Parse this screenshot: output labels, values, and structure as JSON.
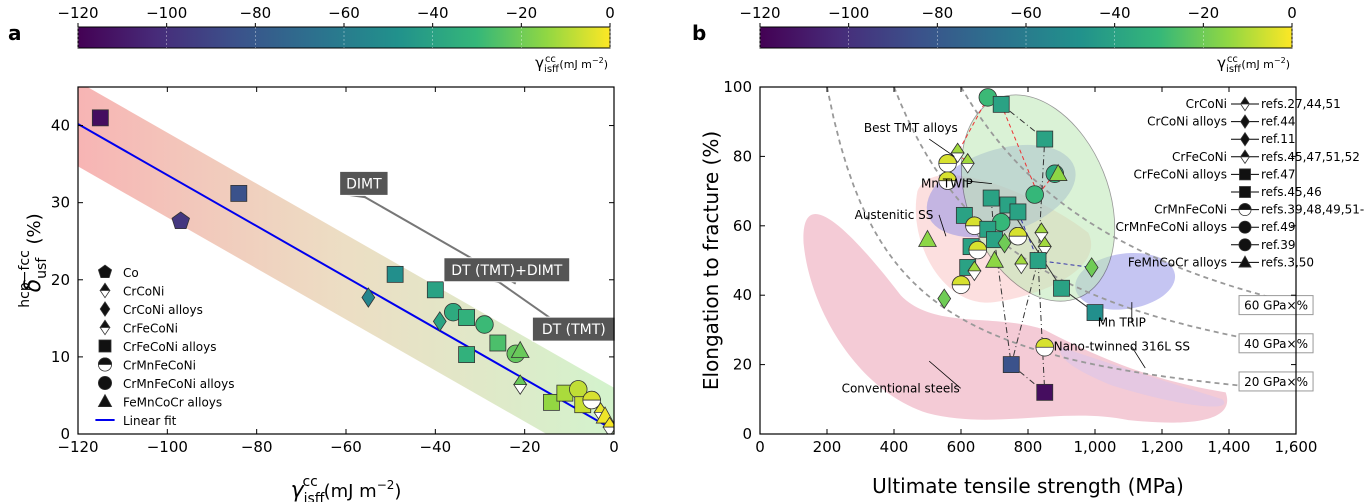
{
  "figure": {
    "panel_a_label": "a",
    "panel_b_label": "b"
  },
  "colorbar": {
    "ticks": [
      "−120",
      "−100",
      "−80",
      "−60",
      "−40",
      "−20",
      "0"
    ],
    "label_symbol": "γ",
    "label_super": "fcc",
    "label_sub": "isf",
    "label_units": " (mJ m",
    "label_exp": "−2",
    "label_close": ")"
  },
  "chart_data": [
    {
      "type": "scatter",
      "panel": "a",
      "xlabel": {
        "symbol": "γ",
        "super": "fcc",
        "sub": "isf",
        "units": " (mJ m",
        "exp": "−2",
        "close": ")"
      },
      "ylabel": {
        "symbol": "δ",
        "super": "hcp−fcc",
        "sub": "usf",
        "units": " (%)"
      },
      "xlim": [
        -120,
        0
      ],
      "ylim": [
        0,
        45
      ],
      "x_ticks": [
        -120,
        -100,
        -80,
        -60,
        -40,
        -20,
        0
      ],
      "x_tick_labels": [
        "−120",
        "−100",
        "−80",
        "−60",
        "−40",
        "−20",
        "0"
      ],
      "y_ticks": [
        0,
        10,
        20,
        30,
        40
      ],
      "y_tick_labels": [
        "0",
        "10",
        "20",
        "30",
        "40"
      ],
      "linear_fit": {
        "name": "Linear fit",
        "x": [
          -120,
          0
        ],
        "y": [
          40.2,
          0.5
        ]
      },
      "legend": [
        {
          "marker": "pentagon",
          "label": "Co"
        },
        {
          "marker": "diamond-half",
          "label": "CrCoNi"
        },
        {
          "marker": "diamond",
          "label": "CrCoNi alloys"
        },
        {
          "marker": "diamond-half",
          "label": "CrFeCoNi"
        },
        {
          "marker": "square",
          "label": "CrFeCoNi alloys"
        },
        {
          "marker": "circle-half",
          "label": "CrMnFeCoNi"
        },
        {
          "marker": "circle",
          "label": "CrMnFeCoNi alloys"
        },
        {
          "marker": "triangle",
          "label": "FeMnCoCr alloys"
        },
        {
          "marker": "line",
          "label": "Linear fit"
        }
      ],
      "annotations": [
        "DIMT",
        "DT (TMT)+DIMT",
        "DT (TMT)"
      ],
      "points": [
        {
          "x": -115,
          "y": 41.0,
          "marker": "square"
        },
        {
          "x": -97,
          "y": 27.6,
          "marker": "pentagon"
        },
        {
          "x": -84,
          "y": 31.2,
          "marker": "square"
        },
        {
          "x": -55,
          "y": 17.7,
          "marker": "diamond"
        },
        {
          "x": -49,
          "y": 20.7,
          "marker": "square"
        },
        {
          "x": -40,
          "y": 18.7,
          "marker": "square"
        },
        {
          "x": -39,
          "y": 14.6,
          "marker": "diamond"
        },
        {
          "x": -36,
          "y": 15.8,
          "marker": "circle"
        },
        {
          "x": -33,
          "y": 15.1,
          "marker": "square"
        },
        {
          "x": -33,
          "y": 10.3,
          "marker": "square"
        },
        {
          "x": -29,
          "y": 14.2,
          "marker": "circle"
        },
        {
          "x": -26,
          "y": 11.8,
          "marker": "square"
        },
        {
          "x": -22,
          "y": 10.4,
          "marker": "circle"
        },
        {
          "x": -21,
          "y": 10.8,
          "marker": "triangle"
        },
        {
          "x": -21,
          "y": 6.4,
          "marker": "diamond-half"
        },
        {
          "x": -14,
          "y": 4.1,
          "marker": "square"
        },
        {
          "x": -11,
          "y": 5.3,
          "marker": "square"
        },
        {
          "x": -8,
          "y": 5.8,
          "marker": "circle"
        },
        {
          "x": -7,
          "y": 3.8,
          "marker": "square"
        },
        {
          "x": -5,
          "y": 4.4,
          "marker": "circle-half"
        },
        {
          "x": -3,
          "y": 2.8,
          "marker": "diamond-half"
        },
        {
          "x": -2,
          "y": 2.3,
          "marker": "triangle"
        },
        {
          "x": -1,
          "y": 0.9,
          "marker": "diamond-half"
        }
      ]
    },
    {
      "type": "scatter",
      "panel": "b",
      "xlabel": "Ultimate tensile strength (MPa)",
      "ylabel": "Elongation to fracture (%)",
      "xlim": [
        0,
        1600
      ],
      "ylim": [
        0,
        100
      ],
      "x_ticks": [
        0,
        200,
        400,
        600,
        800,
        1000,
        1200,
        1400,
        1600
      ],
      "x_tick_labels": [
        "0",
        "200",
        "400",
        "600",
        "800",
        "1,000",
        "1,200",
        "1,400",
        "1,600"
      ],
      "y_ticks": [
        0,
        20,
        40,
        60,
        80,
        100
      ],
      "y_tick_labels": [
        "0",
        "20",
        "40",
        "60",
        "80",
        "100"
      ],
      "regions": [
        "Mn TWIP",
        "Austenitic SS",
        "Mn TRIP",
        "Nano-twinned 316L SS",
        "Conventional steels"
      ],
      "highlight_label": "Best TMT alloys",
      "iso_lines": [
        "60 GPa×%",
        "40 GPa×%",
        "20 GPa×%"
      ],
      "legend": [
        {
          "group": "CrCoNi",
          "ref": "refs.27,44,51",
          "marker": "diamond-half"
        },
        {
          "group": "CrCoNi alloys",
          "ref": "ref.44",
          "marker": "diamond"
        },
        {
          "group": "",
          "ref": "ref.11",
          "marker": "diamond"
        },
        {
          "group": "CrFeCoNi",
          "ref": "refs.45,47,51,52",
          "marker": "diamond-half"
        },
        {
          "group": "CrFeCoNi alloys",
          "ref": "ref.47",
          "marker": "square"
        },
        {
          "group": "",
          "ref": "refs.45,46",
          "marker": "square"
        },
        {
          "group": "CrMnFeCoNi",
          "ref": "refs.39,48,49,51-53",
          "marker": "circle-half"
        },
        {
          "group": "CrMnFeCoNi alloys",
          "ref": "ref.49",
          "marker": "circle"
        },
        {
          "group": "",
          "ref": "ref.39",
          "marker": "circle"
        },
        {
          "group": "FeMnCoCr alloys",
          "ref": "refs.3,50",
          "marker": "triangle"
        }
      ],
      "points": [
        {
          "x": 680,
          "y": 97,
          "marker": "circle"
        },
        {
          "x": 720,
          "y": 95,
          "marker": "square"
        },
        {
          "x": 850,
          "y": 85,
          "marker": "square"
        },
        {
          "x": 590,
          "y": 81,
          "marker": "diamond-half"
        },
        {
          "x": 620,
          "y": 78,
          "marker": "diamond-half"
        },
        {
          "x": 560,
          "y": 78,
          "marker": "circle-half"
        },
        {
          "x": 560,
          "y": 73,
          "marker": "circle-half"
        },
        {
          "x": 880,
          "y": 75,
          "marker": "circle"
        },
        {
          "x": 890,
          "y": 75,
          "marker": "triangle"
        },
        {
          "x": 820,
          "y": 69,
          "marker": "circle"
        },
        {
          "x": 690,
          "y": 68,
          "marker": "square"
        },
        {
          "x": 740,
          "y": 66,
          "marker": "square"
        },
        {
          "x": 770,
          "y": 64,
          "marker": "square"
        },
        {
          "x": 610,
          "y": 63,
          "marker": "square"
        },
        {
          "x": 720,
          "y": 61,
          "marker": "circle"
        },
        {
          "x": 640,
          "y": 60,
          "marker": "circle-half"
        },
        {
          "x": 680,
          "y": 59,
          "marker": "square"
        },
        {
          "x": 840,
          "y": 58,
          "marker": "diamond-half"
        },
        {
          "x": 770,
          "y": 57,
          "marker": "circle-half"
        },
        {
          "x": 500,
          "y": 56,
          "marker": "triangle"
        },
        {
          "x": 700,
          "y": 56,
          "marker": "square"
        },
        {
          "x": 730,
          "y": 55,
          "marker": "diamond"
        },
        {
          "x": 630,
          "y": 54,
          "marker": "square"
        },
        {
          "x": 650,
          "y": 53,
          "marker": "circle-half"
        },
        {
          "x": 850,
          "y": 54,
          "marker": "diamond-half"
        },
        {
          "x": 700,
          "y": 50,
          "marker": "triangle"
        },
        {
          "x": 780,
          "y": 49,
          "marker": "diamond-half"
        },
        {
          "x": 830,
          "y": 50,
          "marker": "square"
        },
        {
          "x": 990,
          "y": 48,
          "marker": "diamond"
        },
        {
          "x": 620,
          "y": 48,
          "marker": "square"
        },
        {
          "x": 640,
          "y": 47,
          "marker": "diamond-half"
        },
        {
          "x": 600,
          "y": 43,
          "marker": "circle-half"
        },
        {
          "x": 900,
          "y": 42,
          "marker": "square"
        },
        {
          "x": 550,
          "y": 39,
          "marker": "diamond"
        },
        {
          "x": 1000,
          "y": 35,
          "marker": "square"
        },
        {
          "x": 850,
          "y": 25,
          "marker": "circle-half"
        },
        {
          "x": 750,
          "y": 20,
          "marker": "square"
        },
        {
          "x": 850,
          "y": 12,
          "marker": "square"
        }
      ]
    }
  ]
}
